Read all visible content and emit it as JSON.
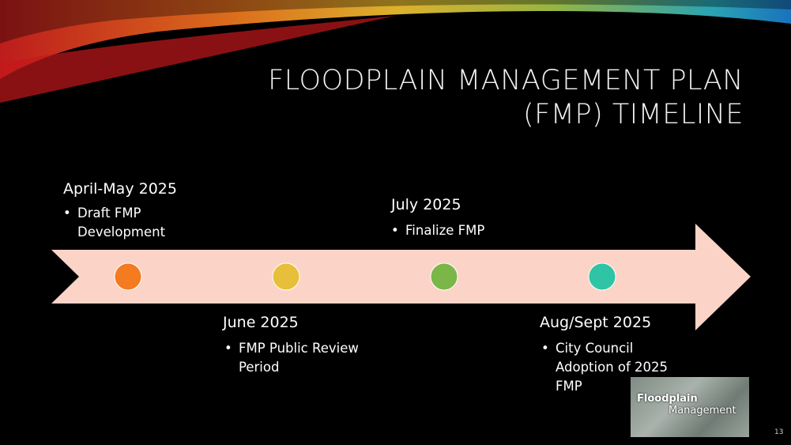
{
  "title": {
    "line1": "FLOODPLAIN MANAGEMENT PLAN",
    "line2": "(FMP) TIMELINE"
  },
  "milestones": [
    {
      "date": "April-May 2025",
      "item": "Draft FMP Development"
    },
    {
      "date": "June 2025",
      "item": "FMP Public Review Period"
    },
    {
      "date": "July 2025",
      "item": "Finalize FMP"
    },
    {
      "date": "Aug/Sept 2025",
      "item": "City Council Adoption of 2025 FMP"
    }
  ],
  "logo": {
    "line1": "Floodplain",
    "line2": "Management"
  },
  "slide_number": "13"
}
